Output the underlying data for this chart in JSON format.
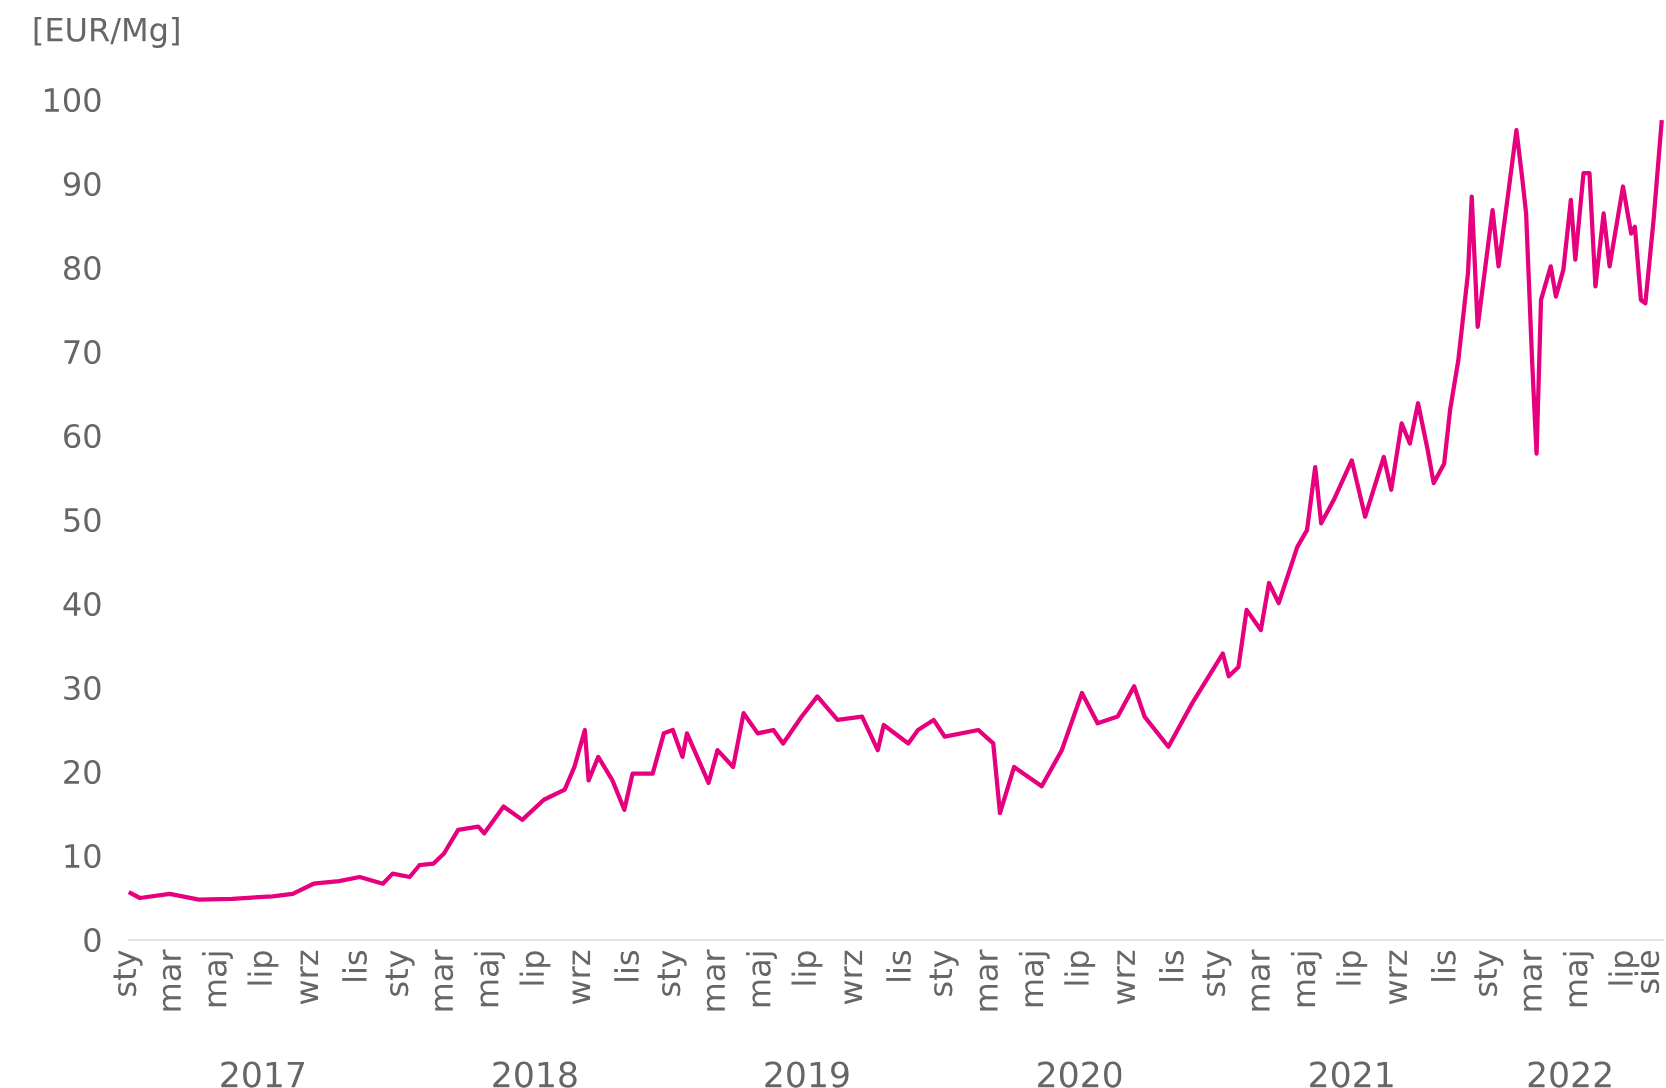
{
  "chart_data": {
    "type": "line",
    "ylabel": "[EUR/Mg]",
    "xlim": [
      "2017-01-01",
      "2022-08-24"
    ],
    "ylim": [
      0,
      100
    ],
    "x2lim": [
      "2017-01-01",
      "2022-08-24"
    ],
    "yticks": [
      0,
      10,
      20,
      30,
      40,
      50,
      60,
      70,
      80,
      90,
      100
    ],
    "xticks": [
      {
        "value": "2017-01-01",
        "label": "sty"
      },
      {
        "value": "2017-03-01",
        "label": "mar"
      },
      {
        "value": "2017-05-01",
        "label": "maj"
      },
      {
        "value": "2017-07-01",
        "label": "lip"
      },
      {
        "value": "2017-09-01",
        "label": "wrz"
      },
      {
        "value": "2017-11-01",
        "label": "lis"
      },
      {
        "value": "2018-01-01",
        "label": "sty"
      },
      {
        "value": "2018-03-01",
        "label": "mar"
      },
      {
        "value": "2018-05-01",
        "label": "maj"
      },
      {
        "value": "2018-07-01",
        "label": "lip"
      },
      {
        "value": "2018-09-01",
        "label": "wrz"
      },
      {
        "value": "2018-11-01",
        "label": "lis"
      },
      {
        "value": "2019-01-01",
        "label": "sty"
      },
      {
        "value": "2019-03-01",
        "label": "mar"
      },
      {
        "value": "2019-05-01",
        "label": "maj"
      },
      {
        "value": "2019-07-01",
        "label": "lip"
      },
      {
        "value": "2019-09-01",
        "label": "wrz"
      },
      {
        "value": "2019-11-01",
        "label": "lis"
      },
      {
        "value": "2020-01-01",
        "label": "sty"
      },
      {
        "value": "2020-03-01",
        "label": "mar"
      },
      {
        "value": "2020-05-01",
        "label": "maj"
      },
      {
        "value": "2020-07-01",
        "label": "lip"
      },
      {
        "value": "2020-09-01",
        "label": "wrz"
      },
      {
        "value": "2020-11-01",
        "label": "lis"
      },
      {
        "value": "2021-01-01",
        "label": "sty"
      },
      {
        "value": "2021-03-01",
        "label": "mar"
      },
      {
        "value": "2021-05-01",
        "label": "maj"
      },
      {
        "value": "2021-07-01",
        "label": "lip"
      },
      {
        "value": "2021-09-01",
        "label": "wrz"
      },
      {
        "value": "2021-11-01",
        "label": "lis"
      },
      {
        "value": "2022-01-01",
        "label": "sty"
      },
      {
        "value": "2022-03-01",
        "label": "mar"
      },
      {
        "value": "2022-05-01",
        "label": "maj"
      },
      {
        "value": "2022-07-01",
        "label": "lip"
      },
      {
        "value": "2022-08-01",
        "label": "sie"
      }
    ],
    "x2ticks": [
      {
        "value": "2017-07-01",
        "label": "2017"
      },
      {
        "value": "2018-07-01",
        "label": "2018"
      },
      {
        "value": "2019-07-01",
        "label": "2019"
      },
      {
        "value": "2020-07-01",
        "label": "2020"
      },
      {
        "value": "2021-07-01",
        "label": "2021"
      },
      {
        "value": "2022-04-20",
        "label": "2022"
      }
    ],
    "marker": "none",
    "line_style": "solid",
    "series": [
      {
        "color": "#e6007e",
        "x": [
          "2017-01-02",
          "2017-01-17",
          "2017-02-26",
          "2017-04-06",
          "2017-05-21",
          "2017-07-14",
          "2017-08-10",
          "2017-09-07",
          "2017-10-11",
          "2017-11-08",
          "2017-12-09",
          "2017-12-22",
          "2018-01-14",
          "2018-01-27",
          "2018-02-15",
          "2018-03-01",
          "2018-03-20",
          "2018-04-16",
          "2018-04-24",
          "2018-05-20",
          "2018-06-14",
          "2018-07-13",
          "2018-08-10",
          "2018-08-23",
          "2018-09-06",
          "2018-09-11",
          "2018-09-24",
          "2018-10-13",
          "2018-10-29",
          "2018-11-09",
          "2018-12-06",
          "2018-12-21",
          "2019-01-02",
          "2019-01-15",
          "2019-01-21",
          "2019-02-19",
          "2019-03-03",
          "2019-03-24",
          "2019-04-07",
          "2019-04-26",
          "2019-05-17",
          "2019-05-30",
          "2019-06-24",
          "2019-07-15",
          "2019-08-11",
          "2019-09-13",
          "2019-10-04",
          "2019-10-12",
          "2019-11-14",
          "2019-11-27",
          "2019-12-18",
          "2020-01-02",
          "2020-02-16",
          "2020-03-07",
          "2020-03-16",
          "2020-04-04",
          "2020-05-11",
          "2020-06-07",
          "2020-07-04",
          "2020-07-25",
          "2020-08-21",
          "2020-09-12",
          "2020-09-26",
          "2020-10-28",
          "2020-11-29",
          "2021-01-09",
          "2021-01-17",
          "2021-01-30",
          "2021-02-10",
          "2021-03-01",
          "2021-03-12",
          "2021-03-25",
          "2021-04-19",
          "2021-05-02",
          "2021-05-13",
          "2021-05-21",
          "2021-06-07",
          "2021-07-01",
          "2021-07-19",
          "2021-08-13",
          "2021-08-23",
          "2021-09-06",
          "2021-09-17",
          "2021-09-28",
          "2021-10-11",
          "2021-10-19",
          "2021-11-02",
          "2021-11-10",
          "2021-11-21",
          "2021-12-04",
          "2021-12-09",
          "2021-12-17",
          "2022-01-06",
          "2022-01-14",
          "2022-01-27",
          "2022-02-07",
          "2022-02-15",
          "2022-02-20",
          "2022-02-28",
          "2022-03-06",
          "2022-03-12",
          "2022-03-25",
          "2022-04-01",
          "2022-04-11",
          "2022-04-21",
          "2022-04-27",
          "2022-05-08",
          "2022-05-16",
          "2022-05-24",
          "2022-06-04",
          "2022-06-12",
          "2022-06-30",
          "2022-07-11",
          "2022-07-16",
          "2022-07-24",
          "2022-07-30",
          "2022-08-10",
          "2022-08-21"
        ],
        "values": [
          5.7,
          5.0,
          5.5,
          4.8,
          4.9,
          5.2,
          5.5,
          6.7,
          7.0,
          7.5,
          6.7,
          7.9,
          7.5,
          8.9,
          9.1,
          10.3,
          13.1,
          13.5,
          12.7,
          15.9,
          14.3,
          16.7,
          17.9,
          20.6,
          25.0,
          19.0,
          21.8,
          19.0,
          15.5,
          19.8,
          19.8,
          24.6,
          25.0,
          21.8,
          24.6,
          18.7,
          22.6,
          20.6,
          27.0,
          24.6,
          25.0,
          23.4,
          26.6,
          29.0,
          26.2,
          26.6,
          22.6,
          25.6,
          23.4,
          25.0,
          26.2,
          24.2,
          25.0,
          23.4,
          15.1,
          20.6,
          18.3,
          22.6,
          29.4,
          25.8,
          26.6,
          30.2,
          26.6,
          23.0,
          28.2,
          34.1,
          31.4,
          32.5,
          39.3,
          36.9,
          42.5,
          40.1,
          46.8,
          48.8,
          56.3,
          49.6,
          52.4,
          57.1,
          50.4,
          57.5,
          53.6,
          61.5,
          59.1,
          63.9,
          58.3,
          54.4,
          56.7,
          63.1,
          69.0,
          79.4,
          88.5,
          73.0,
          86.9,
          80.2,
          88.9,
          96.4,
          90.5,
          86.5,
          69.0,
          57.9,
          76.2,
          80.2,
          76.6,
          79.8,
          88.1,
          81.0,
          91.3,
          91.3,
          77.8,
          86.5,
          80.2,
          89.7,
          84.1,
          84.9,
          76.2,
          75.8,
          85.7,
          97.6
        ]
      }
    ]
  }
}
